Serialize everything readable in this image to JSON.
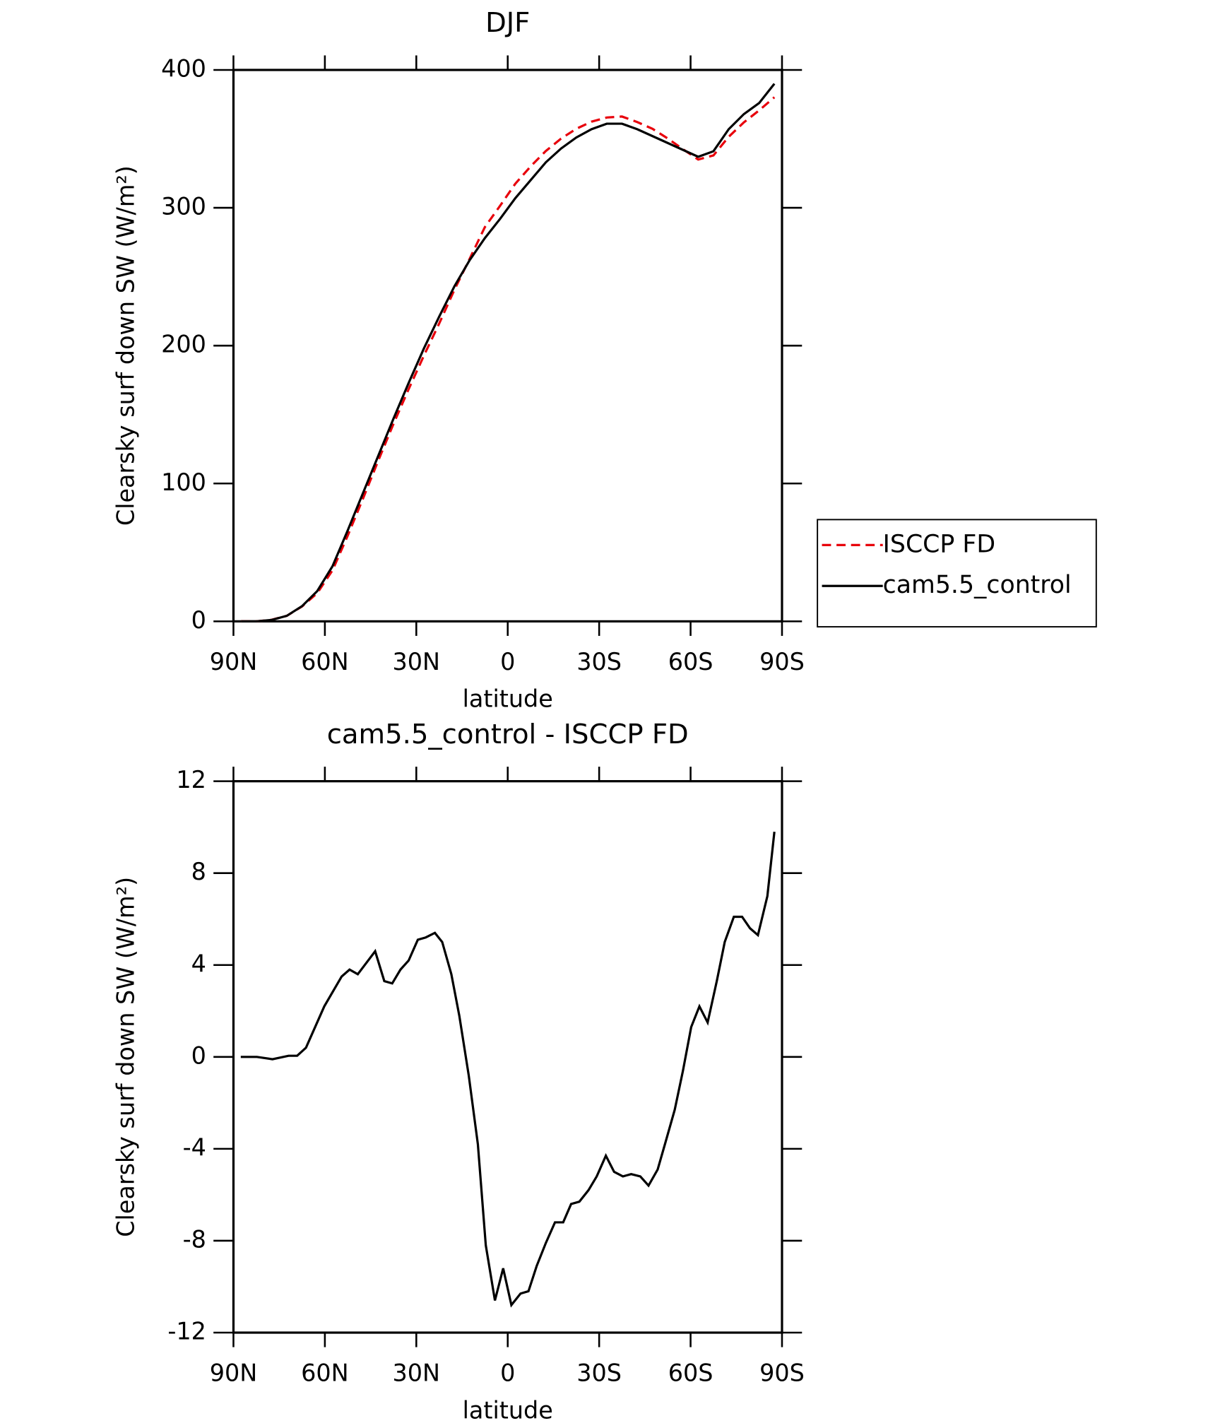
{
  "chart_data": [
    {
      "type": "line",
      "title": "DJF",
      "x_label": "latitude",
      "y_label": "Clearsky surf down SW (W/m²)",
      "x": [
        87.5,
        82.5,
        77.5,
        72.5,
        67.5,
        62.5,
        57.5,
        52.5,
        47.5,
        42.5,
        37.5,
        32.5,
        27.5,
        22.5,
        17.5,
        12.5,
        7.5,
        2.5,
        -2.5,
        -7.5,
        -12.5,
        -17.5,
        -22.5,
        -27.5,
        -32.5,
        -37.5,
        -42.5,
        -47.5,
        -52.5,
        -57.5,
        -62.5,
        -67.5,
        -72.5,
        -77.5,
        -82.5,
        -87.5
      ],
      "xlim": [
        90,
        -90
      ],
      "xticks": [
        {
          "value": 90,
          "label": "90N"
        },
        {
          "value": 60,
          "label": "60N"
        },
        {
          "value": 30,
          "label": "30N"
        },
        0,
        {
          "value": -30,
          "label": "30S"
        },
        {
          "value": -60,
          "label": "60S"
        },
        {
          "value": -90,
          "label": "90S"
        }
      ],
      "ylim": [
        0,
        400
      ],
      "yticks": [
        0,
        100,
        200,
        300,
        400
      ],
      "legend": "right",
      "series": [
        {
          "name": "ISCCP FD",
          "color": "#e8000b",
          "line_style": "dashed",
          "values": [
            0,
            0,
            1.1,
            4,
            10.8,
            20.5,
            37,
            62.2,
            89,
            116.5,
            143.2,
            168.5,
            192.8,
            216,
            240.5,
            263,
            286,
            301.5,
            317.5,
            330,
            341.2,
            350.2,
            357.3,
            362.5,
            365.5,
            366.2,
            362.2,
            357.3,
            350.3,
            342.5,
            335,
            338,
            351.5,
            362,
            370.7,
            380.2
          ]
        },
        {
          "name": "cam5.5_control",
          "color": "#000000",
          "line_style": "solid",
          "values": [
            0,
            0,
            1,
            4,
            11,
            22,
            40,
            66,
            93,
            120,
            147,
            173,
            198,
            221,
            243,
            262,
            278,
            292,
            307,
            320,
            333,
            343,
            351,
            357,
            361,
            361,
            357,
            352,
            347,
            342,
            337,
            341,
            357,
            368,
            376,
            390
          ]
        }
      ]
    },
    {
      "type": "line",
      "title": "cam5.5_control - ISCCP FD",
      "x_label": "latitude",
      "y_label": "Clearsky surf down SW (W/m²)",
      "x": [
        87.6,
        82.3,
        77.2,
        71.9,
        69.1,
        66.2,
        60.2,
        54.5,
        51.9,
        49.2,
        43.5,
        40.5,
        37.9,
        35.2,
        32.5,
        29.5,
        26.9,
        23.9,
        21.5,
        18.5,
        15.9,
        12.8,
        9.8,
        7.2,
        4.2,
        1.5,
        -1.2,
        -4.2,
        -6.8,
        -9.5,
        -12.5,
        -15.5,
        -18.2,
        -20.8,
        -23.5,
        -26.5,
        -29.2,
        -32.2,
        -34.9,
        -37.8,
        -40.5,
        -43.5,
        -46.2,
        -49.2,
        -51.8,
        -54.8,
        -57.5,
        -60.2,
        -62.9,
        -65.6,
        -68.6,
        -71.2,
        -74.2,
        -76.9,
        -79.5,
        -82.1,
        -85.2,
        -87.5
      ],
      "xlim": [
        90,
        -90
      ],
      "xticks": [
        {
          "value": 90,
          "label": "90N"
        },
        {
          "value": 60,
          "label": "60N"
        },
        {
          "value": 30,
          "label": "30N"
        },
        0,
        {
          "value": -30,
          "label": "30S"
        },
        {
          "value": -60,
          "label": "60S"
        },
        {
          "value": -90,
          "label": "90S"
        }
      ],
      "ylim": [
        -12,
        12
      ],
      "yticks": [
        -12,
        -8,
        -4,
        0,
        4,
        8,
        12
      ],
      "color": "#000000",
      "values": [
        0,
        0,
        -0.1,
        0.05,
        0.05,
        0.4,
        2.2,
        3.5,
        3.8,
        3.6,
        4.6,
        3.3,
        3.2,
        3.8,
        4.2,
        5.1,
        5.2,
        5.4,
        5,
        3.6,
        1.8,
        -0.8,
        -3.8,
        -8.2,
        -10.6,
        -9.2,
        -10.8,
        -10.3,
        -10.2,
        -9.1,
        -8.1,
        -7.2,
        -7.2,
        -6.4,
        -6.3,
        -5.8,
        -5.2,
        -4.3,
        -5,
        -5.2,
        -5.1,
        -5.2,
        -5.6,
        -4.9,
        -3.7,
        -2.3,
        -0.6,
        1.3,
        2.2,
        1.5,
        3.3,
        5,
        6.1,
        6.1,
        5.6,
        5.3,
        7,
        9.8
      ]
    }
  ]
}
